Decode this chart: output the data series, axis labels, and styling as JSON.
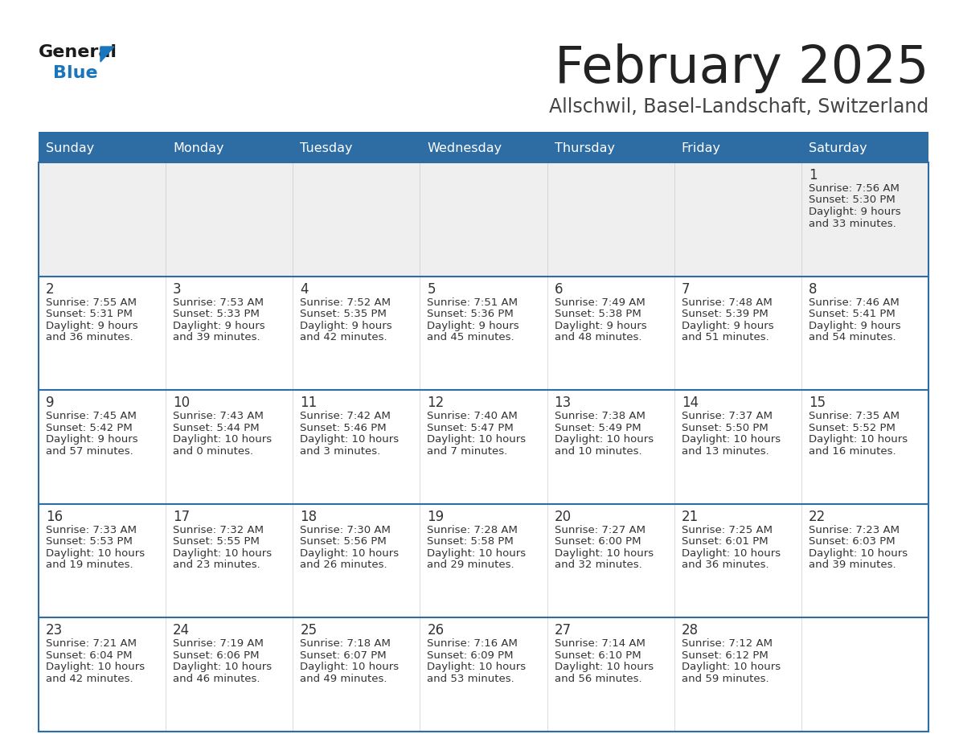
{
  "title": "February 2025",
  "subtitle": "Allschwil, Basel-Landschaft, Switzerland",
  "days_of_week": [
    "Sunday",
    "Monday",
    "Tuesday",
    "Wednesday",
    "Thursday",
    "Friday",
    "Saturday"
  ],
  "header_bg": "#2E6DA4",
  "header_text": "#FFFFFF",
  "cell_bg_row0": "#EFEFEF",
  "cell_bg_normal": "#FFFFFF",
  "border_color": "#2E6DA4",
  "text_color": "#333333",
  "title_color": "#222222",
  "subtitle_color": "#444444",
  "logo_general_color": "#1a1a1a",
  "logo_blue_color": "#1975BC",
  "separator_color": "#2E6DA4",
  "calendar_data": [
    {
      "day": 1,
      "row": 0,
      "col": 6,
      "sunrise": "7:56 AM",
      "sunset": "5:30 PM",
      "daylight": "9 hours and 33 minutes."
    },
    {
      "day": 2,
      "row": 1,
      "col": 0,
      "sunrise": "7:55 AM",
      "sunset": "5:31 PM",
      "daylight": "9 hours and 36 minutes."
    },
    {
      "day": 3,
      "row": 1,
      "col": 1,
      "sunrise": "7:53 AM",
      "sunset": "5:33 PM",
      "daylight": "9 hours and 39 minutes."
    },
    {
      "day": 4,
      "row": 1,
      "col": 2,
      "sunrise": "7:52 AM",
      "sunset": "5:35 PM",
      "daylight": "9 hours and 42 minutes."
    },
    {
      "day": 5,
      "row": 1,
      "col": 3,
      "sunrise": "7:51 AM",
      "sunset": "5:36 PM",
      "daylight": "9 hours and 45 minutes."
    },
    {
      "day": 6,
      "row": 1,
      "col": 4,
      "sunrise": "7:49 AM",
      "sunset": "5:38 PM",
      "daylight": "9 hours and 48 minutes."
    },
    {
      "day": 7,
      "row": 1,
      "col": 5,
      "sunrise": "7:48 AM",
      "sunset": "5:39 PM",
      "daylight": "9 hours and 51 minutes."
    },
    {
      "day": 8,
      "row": 1,
      "col": 6,
      "sunrise": "7:46 AM",
      "sunset": "5:41 PM",
      "daylight": "9 hours and 54 minutes."
    },
    {
      "day": 9,
      "row": 2,
      "col": 0,
      "sunrise": "7:45 AM",
      "sunset": "5:42 PM",
      "daylight": "9 hours and 57 minutes."
    },
    {
      "day": 10,
      "row": 2,
      "col": 1,
      "sunrise": "7:43 AM",
      "sunset": "5:44 PM",
      "daylight": "10 hours and 0 minutes."
    },
    {
      "day": 11,
      "row": 2,
      "col": 2,
      "sunrise": "7:42 AM",
      "sunset": "5:46 PM",
      "daylight": "10 hours and 3 minutes."
    },
    {
      "day": 12,
      "row": 2,
      "col": 3,
      "sunrise": "7:40 AM",
      "sunset": "5:47 PM",
      "daylight": "10 hours and 7 minutes."
    },
    {
      "day": 13,
      "row": 2,
      "col": 4,
      "sunrise": "7:38 AM",
      "sunset": "5:49 PM",
      "daylight": "10 hours and 10 minutes."
    },
    {
      "day": 14,
      "row": 2,
      "col": 5,
      "sunrise": "7:37 AM",
      "sunset": "5:50 PM",
      "daylight": "10 hours and 13 minutes."
    },
    {
      "day": 15,
      "row": 2,
      "col": 6,
      "sunrise": "7:35 AM",
      "sunset": "5:52 PM",
      "daylight": "10 hours and 16 minutes."
    },
    {
      "day": 16,
      "row": 3,
      "col": 0,
      "sunrise": "7:33 AM",
      "sunset": "5:53 PM",
      "daylight": "10 hours and 19 minutes."
    },
    {
      "day": 17,
      "row": 3,
      "col": 1,
      "sunrise": "7:32 AM",
      "sunset": "5:55 PM",
      "daylight": "10 hours and 23 minutes."
    },
    {
      "day": 18,
      "row": 3,
      "col": 2,
      "sunrise": "7:30 AM",
      "sunset": "5:56 PM",
      "daylight": "10 hours and 26 minutes."
    },
    {
      "day": 19,
      "row": 3,
      "col": 3,
      "sunrise": "7:28 AM",
      "sunset": "5:58 PM",
      "daylight": "10 hours and 29 minutes."
    },
    {
      "day": 20,
      "row": 3,
      "col": 4,
      "sunrise": "7:27 AM",
      "sunset": "6:00 PM",
      "daylight": "10 hours and 32 minutes."
    },
    {
      "day": 21,
      "row": 3,
      "col": 5,
      "sunrise": "7:25 AM",
      "sunset": "6:01 PM",
      "daylight": "10 hours and 36 minutes."
    },
    {
      "day": 22,
      "row": 3,
      "col": 6,
      "sunrise": "7:23 AM",
      "sunset": "6:03 PM",
      "daylight": "10 hours and 39 minutes."
    },
    {
      "day": 23,
      "row": 4,
      "col": 0,
      "sunrise": "7:21 AM",
      "sunset": "6:04 PM",
      "daylight": "10 hours and 42 minutes."
    },
    {
      "day": 24,
      "row": 4,
      "col": 1,
      "sunrise": "7:19 AM",
      "sunset": "6:06 PM",
      "daylight": "10 hours and 46 minutes."
    },
    {
      "day": 25,
      "row": 4,
      "col": 2,
      "sunrise": "7:18 AM",
      "sunset": "6:07 PM",
      "daylight": "10 hours and 49 minutes."
    },
    {
      "day": 26,
      "row": 4,
      "col": 3,
      "sunrise": "7:16 AM",
      "sunset": "6:09 PM",
      "daylight": "10 hours and 53 minutes."
    },
    {
      "day": 27,
      "row": 4,
      "col": 4,
      "sunrise": "7:14 AM",
      "sunset": "6:10 PM",
      "daylight": "10 hours and 56 minutes."
    },
    {
      "day": 28,
      "row": 4,
      "col": 5,
      "sunrise": "7:12 AM",
      "sunset": "6:12 PM",
      "daylight": "10 hours and 59 minutes."
    }
  ]
}
